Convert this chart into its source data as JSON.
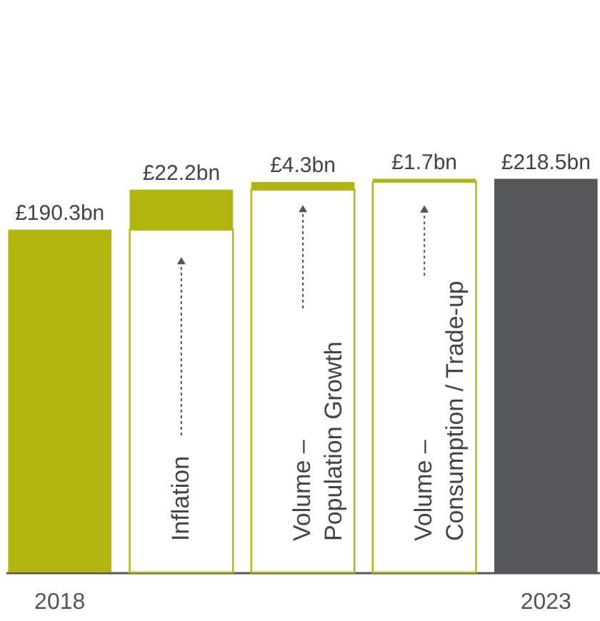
{
  "chart_data": {
    "type": "bar",
    "stacked": true,
    "categories": [
      "2018",
      null,
      null,
      null,
      "2023"
    ],
    "series": [
      {
        "color": "#b3b50f",
        "values": [
          null,
          190.3,
          212.5,
          216.8,
          null
        ]
      },
      {
        "colors": [
          "#b3b50f",
          "#b3b50f",
          "#b3b50f",
          "#b3b50f",
          "#54585a"
        ],
        "values": [
          190.3,
          22.2,
          4.3,
          1.7,
          218.5
        ],
        "value_labels": [
          "£190.3bn",
          "£22.2bn",
          "£4.3bn",
          "£1.7bn",
          "£218.5bn"
        ]
      }
    ],
    "annotations": [
      "Inflation",
      "Volume –\nPopulation Growth",
      "Volume –\nConsumption / Trade-up"
    ],
    "tick_labels": "x",
    "grid": false
  }
}
